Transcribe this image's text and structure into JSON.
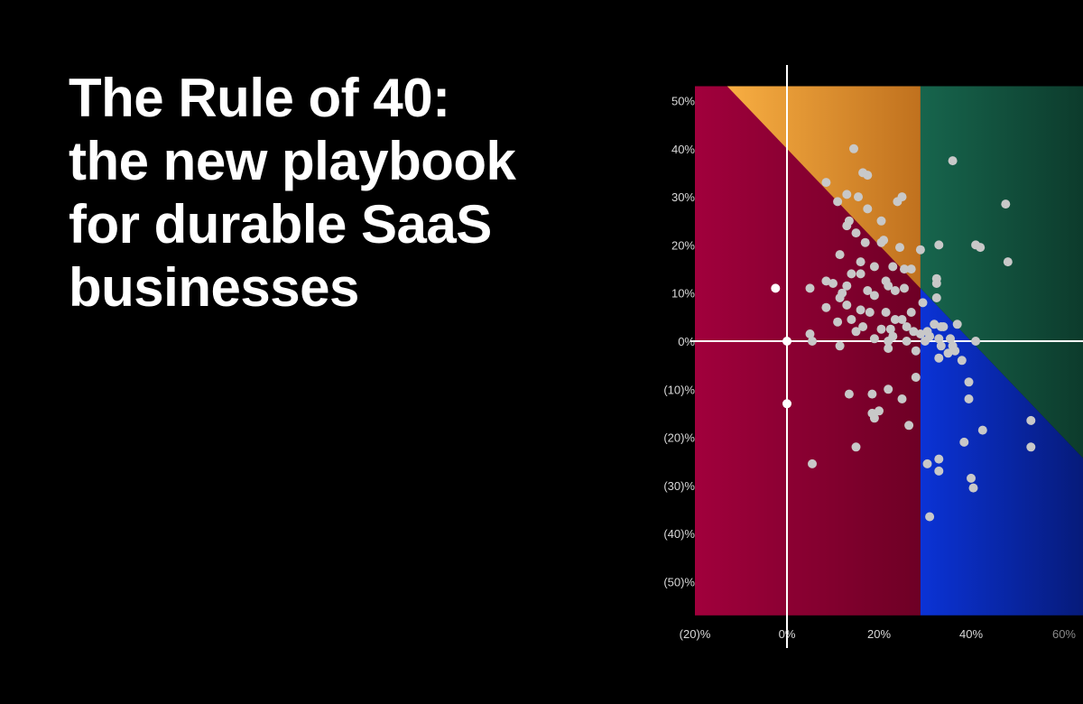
{
  "headline": {
    "lines": [
      "The Rule of 40:",
      "the new playbook",
      "for durable SaaS",
      "businesses"
    ]
  },
  "colors": {
    "background": "#000000",
    "below_rule_region": "#a1003c",
    "top_left_region": "#f5a23c",
    "top_right_region": "#17604a",
    "bottom_right_region": "#0a2fc8",
    "point": "#c8c8c8",
    "highlight_point": "#ffffff",
    "axis": "#ffffff",
    "tick_label": "#d9d9d9",
    "tick_label_muted": "#8a8a8a"
  },
  "chart_data": {
    "type": "scatter",
    "title": "",
    "xlabel": "",
    "ylabel": "",
    "xlim": [
      -20,
      60
    ],
    "ylim": [
      -57,
      53
    ],
    "x_ticks": [
      "(20)%",
      "0%",
      "20%",
      "40%",
      "60%"
    ],
    "y_ticks": [
      "50%",
      "40%",
      "30%",
      "20%",
      "10%",
      "0%",
      "(10)%",
      "(20)%",
      "(30)%",
      "(40)%",
      "(50)%"
    ],
    "regions": {
      "rule_line": "x + y = 40",
      "vertical_divider_x": 29
    },
    "highlighted_points": [
      {
        "x": -2.5,
        "y": 11
      },
      {
        "x": 0,
        "y": 0
      },
      {
        "x": 0,
        "y": -13
      }
    ],
    "points": [
      {
        "x": 14.5,
        "y": 40
      },
      {
        "x": 36,
        "y": 37.5
      },
      {
        "x": 16.5,
        "y": 35
      },
      {
        "x": 17.5,
        "y": 34.5
      },
      {
        "x": 8.5,
        "y": 33
      },
      {
        "x": 47.5,
        "y": 28.5
      },
      {
        "x": 13,
        "y": 30.5
      },
      {
        "x": 15.5,
        "y": 30
      },
      {
        "x": 25,
        "y": 30
      },
      {
        "x": 24,
        "y": 29
      },
      {
        "x": 11,
        "y": 29
      },
      {
        "x": 17.5,
        "y": 27.5
      },
      {
        "x": 13.5,
        "y": 25
      },
      {
        "x": 20.5,
        "y": 25
      },
      {
        "x": 13,
        "y": 24
      },
      {
        "x": 15,
        "y": 22.5
      },
      {
        "x": 17,
        "y": 20.5
      },
      {
        "x": 20.5,
        "y": 20.5
      },
      {
        "x": 21,
        "y": 21
      },
      {
        "x": 33,
        "y": 20
      },
      {
        "x": 41,
        "y": 20
      },
      {
        "x": 42,
        "y": 19.5
      },
      {
        "x": 24.5,
        "y": 19.5
      },
      {
        "x": 29,
        "y": 19
      },
      {
        "x": 11.5,
        "y": 18
      },
      {
        "x": 48,
        "y": 16.5
      },
      {
        "x": 16,
        "y": 16.5
      },
      {
        "x": 14,
        "y": 14
      },
      {
        "x": 19,
        "y": 15.5
      },
      {
        "x": 23,
        "y": 15.5
      },
      {
        "x": 25.5,
        "y": 15
      },
      {
        "x": 27,
        "y": 15
      },
      {
        "x": 16,
        "y": 14
      },
      {
        "x": 32.5,
        "y": 13
      },
      {
        "x": 32.5,
        "y": 12
      },
      {
        "x": 21.5,
        "y": 12.5
      },
      {
        "x": 8.5,
        "y": 12.5
      },
      {
        "x": 10,
        "y": 12
      },
      {
        "x": 13,
        "y": 11.5
      },
      {
        "x": 22,
        "y": 11.5
      },
      {
        "x": 5,
        "y": 11
      },
      {
        "x": 25.5,
        "y": 11
      },
      {
        "x": 23.5,
        "y": 10.5
      },
      {
        "x": 17.5,
        "y": 10.5
      },
      {
        "x": 12,
        "y": 10
      },
      {
        "x": 32.5,
        "y": 9
      },
      {
        "x": 19,
        "y": 9.5
      },
      {
        "x": 11.5,
        "y": 9
      },
      {
        "x": 29.5,
        "y": 8
      },
      {
        "x": 13,
        "y": 7.5
      },
      {
        "x": 8.5,
        "y": 7
      },
      {
        "x": 16,
        "y": 6.5
      },
      {
        "x": 18,
        "y": 6
      },
      {
        "x": 27,
        "y": 6
      },
      {
        "x": 21.5,
        "y": 6
      },
      {
        "x": 23.5,
        "y": 4.5
      },
      {
        "x": 25,
        "y": 4.5
      },
      {
        "x": 14,
        "y": 4.5
      },
      {
        "x": 11,
        "y": 4
      },
      {
        "x": 26,
        "y": 3
      },
      {
        "x": 16.5,
        "y": 3
      },
      {
        "x": 32,
        "y": 3.5
      },
      {
        "x": 33.5,
        "y": 3
      },
      {
        "x": 34,
        "y": 3
      },
      {
        "x": 37,
        "y": 3.5
      },
      {
        "x": 20.5,
        "y": 2.5
      },
      {
        "x": 22.5,
        "y": 2.5
      },
      {
        "x": 27.5,
        "y": 2
      },
      {
        "x": 30.5,
        "y": 2
      },
      {
        "x": 15,
        "y": 2
      },
      {
        "x": 5,
        "y": 1.5
      },
      {
        "x": 29,
        "y": 1.5
      },
      {
        "x": 31,
        "y": 1
      },
      {
        "x": 23,
        "y": 1
      },
      {
        "x": 19,
        "y": 0.5
      },
      {
        "x": 33,
        "y": 0.5
      },
      {
        "x": 35.5,
        "y": 0.5
      },
      {
        "x": 5.5,
        "y": 0
      },
      {
        "x": 22,
        "y": 0
      },
      {
        "x": 26,
        "y": 0
      },
      {
        "x": 30,
        "y": 0
      },
      {
        "x": 41,
        "y": 0
      },
      {
        "x": 11.5,
        "y": -1
      },
      {
        "x": 33.5,
        "y": -1
      },
      {
        "x": 36,
        "y": -1
      },
      {
        "x": 22,
        "y": -1.5
      },
      {
        "x": 28,
        "y": -2
      },
      {
        "x": 35,
        "y": -2.5
      },
      {
        "x": 36.5,
        "y": -2
      },
      {
        "x": 33,
        "y": -3.5
      },
      {
        "x": 38,
        "y": -4
      },
      {
        "x": 28,
        "y": -7.5
      },
      {
        "x": 39.5,
        "y": -8.5
      },
      {
        "x": 22,
        "y": -10
      },
      {
        "x": 13.5,
        "y": -11
      },
      {
        "x": 18.5,
        "y": -11
      },
      {
        "x": 39.5,
        "y": -12
      },
      {
        "x": 25,
        "y": -12
      },
      {
        "x": 18.5,
        "y": -15
      },
      {
        "x": 20,
        "y": -14.5
      },
      {
        "x": 19,
        "y": -16
      },
      {
        "x": 53,
        "y": -16.5
      },
      {
        "x": 26.5,
        "y": -17.5
      },
      {
        "x": 42.5,
        "y": -18.5
      },
      {
        "x": 38.5,
        "y": -21
      },
      {
        "x": 15,
        "y": -22
      },
      {
        "x": 53,
        "y": -22
      },
      {
        "x": 33,
        "y": -24.5
      },
      {
        "x": 30.5,
        "y": -25.5
      },
      {
        "x": 5.5,
        "y": -25.5
      },
      {
        "x": 33,
        "y": -27
      },
      {
        "x": 40,
        "y": -28.5
      },
      {
        "x": 40.5,
        "y": -30.5
      },
      {
        "x": 31,
        "y": -36.5
      }
    ]
  }
}
